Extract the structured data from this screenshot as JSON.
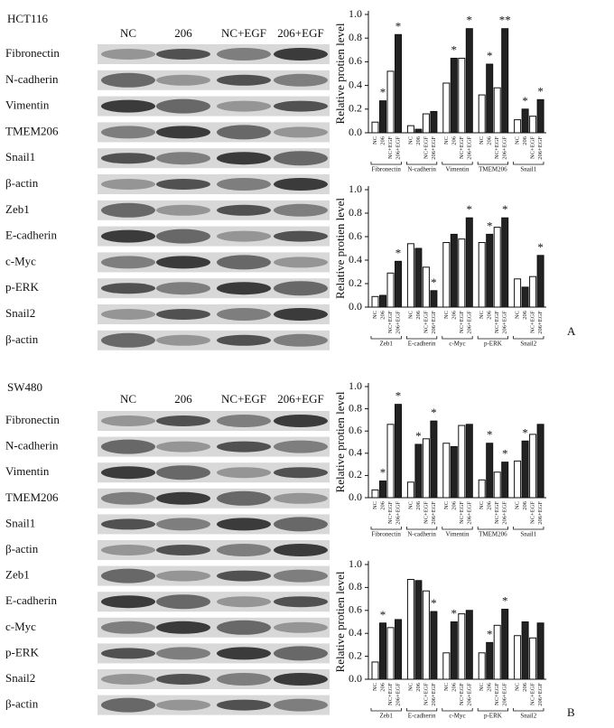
{
  "panels": [
    {
      "label": "A",
      "cell_line": "HCT116",
      "columns": [
        "NC",
        "206",
        "NC+EGF",
        "206+EGF"
      ],
      "rows": [
        "Fibronectin",
        "N-cadherin",
        "Vimentin",
        "TMEM206",
        "Snail1",
        "β-actin",
        "Zeb1",
        "E-cadherin",
        "c-Myc",
        "p-ERK",
        "Snail2",
        "β-actin"
      ]
    },
    {
      "label": "B",
      "cell_line": "SW480",
      "columns": [
        "NC",
        "206",
        "NC+EGF",
        "206+EGF"
      ],
      "rows": [
        "Fibronectin",
        "N-cadherin",
        "Vimentin",
        "TMEM206",
        "Snail1",
        "β-actin",
        "Zeb1",
        "E-cadherin",
        "c-Myc",
        "p-ERK",
        "Snail2",
        "β-actin"
      ]
    }
  ],
  "chart_data": [
    {
      "type": "bar",
      "ylabel": "Relative protien level",
      "categories": [
        "Fibronectin",
        "N-cadherin",
        "Vimentin",
        "TMEM206",
        "Snail1"
      ],
      "series": [
        {
          "name": "NC",
          "color": "#ffffff",
          "values": [
            0.09,
            0.06,
            0.42,
            0.32,
            0.11
          ],
          "labels": [
            null,
            null,
            null,
            null,
            null
          ]
        },
        {
          "name": "206",
          "color": "#222222",
          "values": [
            0.27,
            0.03,
            0.63,
            0.58,
            0.2
          ],
          "labels": [
            "*",
            null,
            "*",
            "*",
            "*"
          ]
        },
        {
          "name": "NC+EGF",
          "color": "#ffffff",
          "values": [
            0.52,
            0.16,
            0.63,
            0.38,
            0.14
          ],
          "labels": [
            null,
            null,
            null,
            null,
            null
          ]
        },
        {
          "name": "206+EGF",
          "color": "#222222",
          "values": [
            0.83,
            0.18,
            0.88,
            0.88,
            0.28
          ],
          "labels": [
            "*",
            null,
            "*",
            "**",
            "*"
          ]
        }
      ],
      "ylim": [
        0,
        1
      ],
      "yticks": [
        {
          "value": 0,
          "label": "0.0"
        },
        0.2,
        0.4,
        0.6,
        0.8,
        {
          "value": 1,
          "label": "1.0"
        }
      ]
    },
    {
      "type": "bar",
      "ylabel": "Relative protien level",
      "categories": [
        "Zeb1",
        "E-cadherin",
        "c-Myc",
        "p-ERK",
        "Snail2"
      ],
      "series": [
        {
          "name": "NC",
          "color": "#ffffff",
          "values": [
            0.09,
            0.54,
            0.55,
            0.55,
            0.24
          ],
          "labels": [
            null,
            null,
            null,
            null,
            null
          ]
        },
        {
          "name": "206",
          "color": "#222222",
          "values": [
            0.1,
            0.5,
            0.62,
            0.62,
            0.17
          ],
          "labels": [
            null,
            null,
            null,
            "*",
            null
          ]
        },
        {
          "name": "NC+EGF",
          "color": "#ffffff",
          "values": [
            0.29,
            0.34,
            0.58,
            0.68,
            0.26
          ],
          "labels": [
            null,
            null,
            null,
            null,
            null
          ]
        },
        {
          "name": "206+EGF",
          "color": "#222222",
          "values": [
            0.39,
            0.14,
            0.76,
            0.76,
            0.44
          ],
          "labels": [
            "*",
            "*",
            "*",
            "*",
            "*"
          ]
        }
      ],
      "ylim": [
        0,
        1
      ],
      "yticks": [
        {
          "value": 0,
          "label": "0.0"
        },
        0.2,
        0.4,
        0.6,
        0.8,
        {
          "value": 1,
          "label": "1.0"
        }
      ]
    },
    {
      "type": "bar",
      "ylabel": "Relative protien level",
      "categories": [
        "Fibronectin",
        "N-cadherin",
        "Vimentin",
        "TMEM206",
        "Snail1"
      ],
      "series": [
        {
          "name": "NC",
          "color": "#ffffff",
          "values": [
            0.07,
            0.14,
            0.49,
            0.16,
            0.33
          ],
          "labels": [
            null,
            null,
            null,
            null,
            null
          ]
        },
        {
          "name": "206",
          "color": "#222222",
          "values": [
            0.15,
            0.48,
            0.46,
            0.49,
            0.51
          ],
          "labels": [
            "*",
            "*",
            null,
            "*",
            "*"
          ]
        },
        {
          "name": "NC+EGF",
          "color": "#ffffff",
          "values": [
            0.66,
            0.53,
            0.65,
            0.23,
            0.57
          ],
          "labels": [
            null,
            null,
            null,
            null,
            null
          ]
        },
        {
          "name": "206+EGF",
          "color": "#222222",
          "values": [
            0.84,
            0.69,
            0.66,
            0.32,
            0.66
          ],
          "labels": [
            "*",
            "*",
            null,
            "*",
            null
          ]
        }
      ],
      "ylim": [
        0,
        1
      ],
      "yticks": [
        {
          "value": 0,
          "label": "0.0"
        },
        0.2,
        0.4,
        0.6,
        0.8,
        {
          "value": 1,
          "label": "1.0"
        }
      ]
    },
    {
      "type": "bar",
      "ylabel": "Relative protien level",
      "categories": [
        "Zeb1",
        "E-cadherin",
        "c-Myc",
        "p-ERK",
        "Snail2"
      ],
      "series": [
        {
          "name": "NC",
          "color": "#ffffff",
          "values": [
            0.15,
            0.87,
            0.23,
            0.23,
            0.38
          ],
          "labels": [
            null,
            null,
            null,
            null,
            null
          ]
        },
        {
          "name": "206",
          "color": "#222222",
          "values": [
            0.49,
            0.86,
            0.5,
            0.32,
            0.5
          ],
          "labels": [
            "*",
            null,
            "*",
            "*",
            null
          ]
        },
        {
          "name": "NC+EGF",
          "color": "#ffffff",
          "values": [
            0.45,
            0.77,
            0.57,
            0.47,
            0.36
          ],
          "labels": [
            null,
            null,
            null,
            null,
            null
          ]
        },
        {
          "name": "206+EGF",
          "color": "#222222",
          "values": [
            0.52,
            0.59,
            0.6,
            0.61,
            0.49
          ],
          "labels": [
            null,
            "*",
            null,
            "*",
            null
          ]
        }
      ],
      "ylim": [
        0,
        1
      ],
      "yticks": [
        {
          "value": 0,
          "label": "0.0"
        },
        0.2,
        0.4,
        0.6,
        0.8,
        {
          "value": 1,
          "label": "1.0"
        }
      ]
    }
  ]
}
